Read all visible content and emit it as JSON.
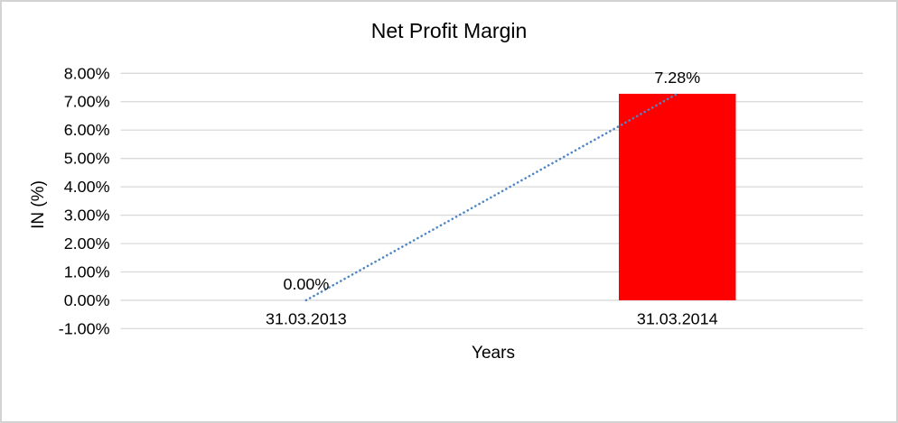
{
  "chart_data": {
    "type": "bar",
    "title": "Net Profit Margin",
    "xlabel": "Years",
    "ylabel": "IN (%)",
    "categories": [
      "31.03.2013",
      "31.03.2014"
    ],
    "series": [
      {
        "name": "Net Profit Margin",
        "values": [
          0.0,
          7.28
        ]
      }
    ],
    "data_labels": [
      "0.00%",
      "7.28%"
    ],
    "ylim": [
      -1,
      8
    ],
    "ytick_step": 1,
    "ytick_labels": [
      "8.00%",
      "7.00%",
      "6.00%",
      "5.00%",
      "4.00%",
      "3.00%",
      "2.00%",
      "1.00%",
      "0.00%",
      "-1.00%"
    ],
    "grid": true,
    "legend": "none",
    "bar_color": "#ff0000",
    "trendline": {
      "type": "linear",
      "style": "dotted",
      "color": "#4e86c6"
    },
    "gridline_color": "#d9d9d9",
    "text_color": "#000000",
    "background_color": "#ffffff",
    "border_color": "#d3d3d3"
  }
}
